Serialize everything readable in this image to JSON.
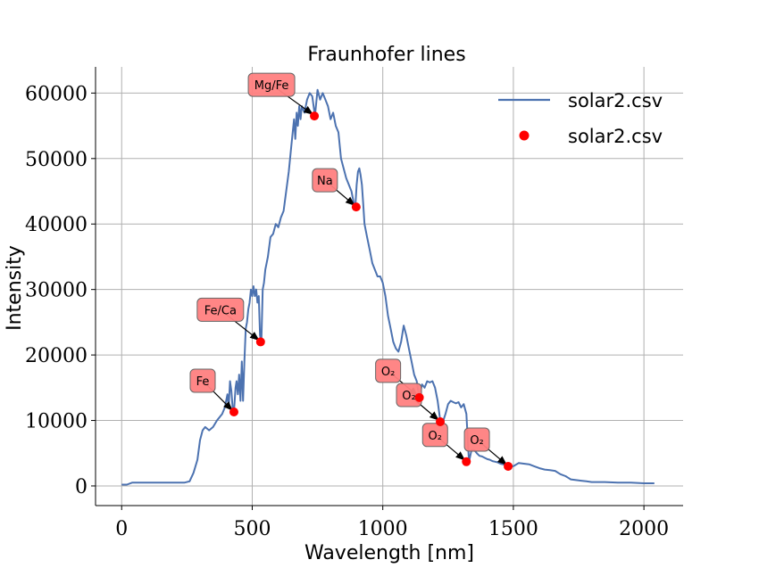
{
  "chart_data": {
    "type": "line",
    "title": "Fraunhofer lines",
    "xlabel": "Wavelength [nm]",
    "ylabel": "Intensity",
    "xlim": [
      -100,
      2150
    ],
    "ylim": [
      -3000,
      64000
    ],
    "x_ticks": [
      0,
      500,
      1000,
      1500,
      2000
    ],
    "y_ticks": [
      0,
      10000,
      20000,
      30000,
      40000,
      50000,
      60000
    ],
    "grid": true,
    "legend": {
      "position": "top-right",
      "entries": [
        "solar2.csv",
        "solar2.csv"
      ]
    },
    "series": [
      {
        "name": "solar2.csv",
        "kind": "line",
        "color": "#4c72b0",
        "x": [
          0,
          20,
          40,
          60,
          100,
          150,
          200,
          240,
          260,
          275,
          290,
          300,
          310,
          320,
          335,
          350,
          365,
          375,
          385,
          395,
          405,
          410,
          415,
          420,
          425,
          430,
          436,
          440,
          445,
          450,
          455,
          460,
          465,
          470,
          475,
          480,
          485,
          490,
          495,
          500,
          505,
          510,
          515,
          520,
          525,
          530,
          535,
          540,
          545,
          550,
          560,
          570,
          580,
          590,
          600,
          610,
          620,
          630,
          640,
          650,
          660,
          665,
          670,
          675,
          680,
          685,
          690,
          700,
          710,
          720,
          730,
          740,
          750,
          760,
          770,
          780,
          790,
          800,
          810,
          820,
          830,
          840,
          850,
          860,
          870,
          880,
          890,
          895,
          900,
          905,
          910,
          915,
          920,
          925,
          930,
          940,
          950,
          960,
          970,
          980,
          990,
          1000,
          1010,
          1020,
          1030,
          1040,
          1050,
          1060,
          1070,
          1080,
          1090,
          1100,
          1110,
          1120,
          1130,
          1140,
          1150,
          1160,
          1170,
          1180,
          1190,
          1200,
          1210,
          1220,
          1230,
          1240,
          1250,
          1260,
          1270,
          1280,
          1290,
          1300,
          1310,
          1320,
          1330,
          1340,
          1350,
          1360,
          1370,
          1380,
          1390,
          1400,
          1410,
          1420,
          1430,
          1440,
          1450,
          1460,
          1470,
          1480,
          1500,
          1520,
          1540,
          1560,
          1580,
          1600,
          1620,
          1640,
          1660,
          1680,
          1700,
          1720,
          1740,
          1760,
          1780,
          1800,
          1850,
          1900,
          1950,
          2000,
          2040
        ],
        "y": [
          200,
          200,
          500,
          500,
          500,
          500,
          500,
          500,
          700,
          2000,
          4000,
          7000,
          8500,
          9000,
          8500,
          9000,
          10000,
          10500,
          11000,
          12000,
          14000,
          12000,
          16000,
          14500,
          12000,
          11300,
          15000,
          16000,
          14000,
          17000,
          13000,
          19000,
          13000,
          19000,
          24000,
          25000,
          27000,
          28000,
          30000,
          29000,
          30500,
          29000,
          30000,
          28000,
          29000,
          23000,
          22000,
          30000,
          31000,
          33000,
          35000,
          38000,
          38500,
          40000,
          39500,
          41000,
          42000,
          45000,
          48000,
          52000,
          56000,
          53000,
          57000,
          55000,
          58000,
          56000,
          58000,
          57000,
          59000,
          60000,
          59500,
          56500,
          60500,
          59000,
          60000,
          59000,
          58000,
          56000,
          57000,
          55000,
          54000,
          50000,
          48500,
          47000,
          46000,
          45000,
          43000,
          42800,
          46000,
          48000,
          48500,
          47500,
          46000,
          43000,
          40000,
          38000,
          36000,
          34000,
          33000,
          32000,
          32000,
          31000,
          29000,
          26000,
          24000,
          22000,
          21000,
          20500,
          22000,
          24500,
          23000,
          21000,
          19000,
          17000,
          16000,
          13500,
          15500,
          15000,
          16000,
          15800,
          16000,
          15000,
          13000,
          10000,
          9800,
          11000,
          12500,
          13000,
          12800,
          12600,
          12800,
          12000,
          12500,
          11000,
          3700,
          5500,
          5500,
          5000,
          4600,
          4500,
          4300,
          4100,
          4000,
          3800,
          3700,
          3600,
          3400,
          3300,
          3200,
          3100,
          3000,
          3500,
          3400,
          3300,
          3000,
          2700,
          2500,
          2400,
          2300,
          1800,
          1500,
          1000,
          900,
          800,
          700,
          600,
          600,
          500,
          500,
          400,
          400
        ]
      },
      {
        "name": "solar2.csv",
        "kind": "scatter",
        "color": "#ff0000",
        "points": [
          {
            "label": "Fe",
            "x": 430,
            "y": 11300
          },
          {
            "label": "Fe/Ca",
            "x": 532,
            "y": 22000
          },
          {
            "label": "Mg/Fe",
            "x": 738,
            "y": 56500
          },
          {
            "label": "Na",
            "x": 898,
            "y": 42600
          },
          {
            "label": "O₂",
            "x": 1140,
            "y": 13500
          },
          {
            "label": "O₂",
            "x": 1220,
            "y": 9800
          },
          {
            "label": "O₂",
            "x": 1320,
            "y": 3700
          },
          {
            "label": "O₂",
            "x": 1480,
            "y": 3000
          }
        ]
      }
    ],
    "annotations": [
      {
        "text": "Fe",
        "x": 430,
        "y": 11300
      },
      {
        "text": "Fe/Ca",
        "x": 532,
        "y": 22000
      },
      {
        "text": "Mg/Fe",
        "x": 738,
        "y": 56500
      },
      {
        "text": "Na",
        "x": 898,
        "y": 42600
      },
      {
        "text": "O₂",
        "x": 1140,
        "y": 13500
      },
      {
        "text": "O₂",
        "x": 1220,
        "y": 9800
      },
      {
        "text": "O₂",
        "x": 1320,
        "y": 3700
      },
      {
        "text": "O₂",
        "x": 1480,
        "y": 3000
      }
    ],
    "colors": {
      "line": "#4c72b0",
      "marker": "#ff0000",
      "box": "#ff7f7f",
      "grid": "#b0b0b0"
    }
  }
}
